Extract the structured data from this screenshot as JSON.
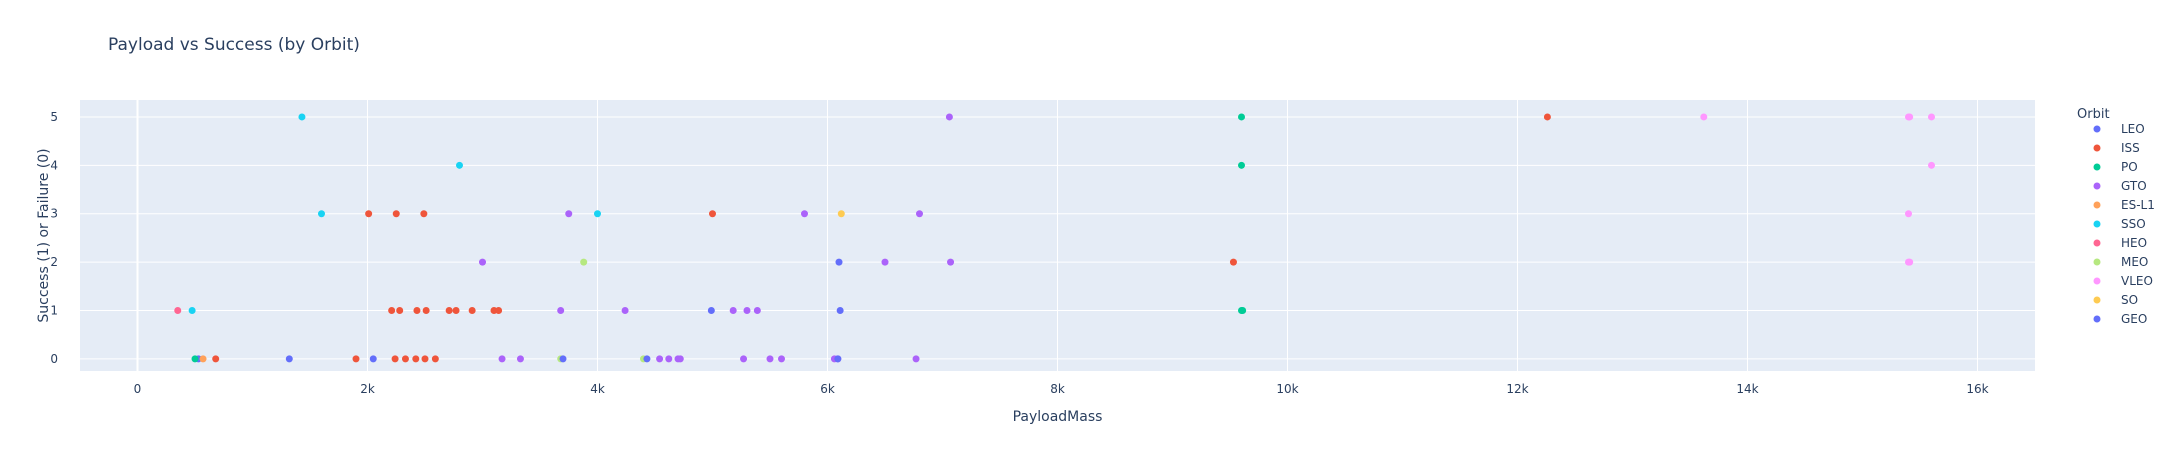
{
  "chart_data": {
    "type": "scatter",
    "title": "Payload vs Success (by Orbit)",
    "xlabel": "PayloadMass",
    "ylabel": "Success (1) or Failure (0)",
    "xlim": [
      -500,
      16500
    ],
    "ylim": [
      -0.25,
      5.35
    ],
    "xticks": [
      0,
      2000,
      4000,
      6000,
      8000,
      10000,
      12000,
      14000,
      16000
    ],
    "xtick_labels": [
      "0",
      "2k",
      "4k",
      "6k",
      "8k",
      "10k",
      "12k",
      "14k",
      "16k"
    ],
    "yticks": [
      0,
      1,
      2,
      3,
      4,
      5
    ],
    "ytick_labels": [
      "0",
      "1",
      "2",
      "3",
      "4",
      "5"
    ],
    "grid": true,
    "legend_title": "Orbit",
    "legend_position": "right",
    "series": [
      {
        "name": "LEO",
        "color": "#636efa",
        "points": [
          [
            530,
            0
          ],
          [
            1320,
            0
          ],
          [
            2050,
            0
          ]
        ]
      },
      {
        "name": "ISS",
        "color": "#ef553b",
        "points": [
          [
            680,
            0
          ],
          [
            1900,
            0
          ],
          [
            2010,
            3
          ],
          [
            2210,
            1
          ],
          [
            2240,
            0
          ],
          [
            2250,
            3
          ],
          [
            2280,
            1
          ],
          [
            2330,
            0
          ],
          [
            2420,
            0
          ],
          [
            2430,
            1
          ],
          [
            2490,
            3
          ],
          [
            2500,
            0
          ],
          [
            2510,
            1
          ],
          [
            2590,
            0
          ],
          [
            2710,
            1
          ],
          [
            2770,
            1
          ],
          [
            2910,
            1
          ],
          [
            3100,
            1
          ],
          [
            3140,
            1
          ],
          [
            5000,
            3
          ],
          [
            9530,
            2
          ],
          [
            12260,
            5
          ]
        ]
      },
      {
        "name": "PO",
        "color": "#00cc96",
        "points": [
          [
            500,
            0
          ],
          [
            9600,
            5
          ],
          [
            9600,
            4
          ],
          [
            9600,
            1
          ],
          [
            9610,
            1
          ]
        ]
      },
      {
        "name": "GTO",
        "color": "#ab63fa",
        "points": [
          [
            3000,
            2
          ],
          [
            3170,
            0
          ],
          [
            3330,
            0
          ],
          [
            3680,
            1
          ],
          [
            3750,
            3
          ],
          [
            4240,
            1
          ],
          [
            4540,
            0
          ],
          [
            4620,
            0
          ],
          [
            4700,
            0
          ],
          [
            4720,
            0
          ],
          [
            5180,
            1
          ],
          [
            5270,
            0
          ],
          [
            5300,
            1
          ],
          [
            5390,
            1
          ],
          [
            5500,
            0
          ],
          [
            5600,
            0
          ],
          [
            5800,
            3
          ],
          [
            6060,
            0
          ],
          [
            6090,
            0
          ],
          [
            6500,
            2
          ],
          [
            6770,
            0
          ],
          [
            6800,
            3
          ],
          [
            7060,
            5
          ],
          [
            7070,
            2
          ]
        ]
      },
      {
        "name": "ES-L1",
        "color": "#ffa15a",
        "points": [
          [
            570,
            0
          ]
        ]
      },
      {
        "name": "SSO",
        "color": "#19d3f3",
        "points": [
          [
            475,
            1
          ],
          [
            1430,
            5
          ],
          [
            1600,
            3
          ],
          [
            2800,
            4
          ],
          [
            4000,
            3
          ]
        ]
      },
      {
        "name": "HEO",
        "color": "#ff6692",
        "points": [
          [
            350,
            1
          ]
        ]
      },
      {
        "name": "MEO",
        "color": "#b6e880",
        "points": [
          [
            3680,
            0
          ],
          [
            3880,
            2
          ],
          [
            4400,
            0
          ]
        ]
      },
      {
        "name": "VLEO",
        "color": "#ff97ff",
        "points": [
          [
            13620,
            5
          ],
          [
            15400,
            5
          ],
          [
            15410,
            5
          ],
          [
            15400,
            3
          ],
          [
            15400,
            2
          ],
          [
            15410,
            2
          ],
          [
            15600,
            5
          ],
          [
            15600,
            4
          ]
        ]
      },
      {
        "name": "SO",
        "color": "#fecb52",
        "points": [
          [
            6120,
            3
          ]
        ]
      },
      {
        "name": "GEO",
        "color": "#636efa",
        "points": [
          [
            3700,
            0
          ],
          [
            4430,
            0
          ],
          [
            4990,
            1
          ],
          [
            6100,
            2
          ],
          [
            6110,
            1
          ],
          [
            6090,
            0
          ]
        ]
      }
    ]
  }
}
